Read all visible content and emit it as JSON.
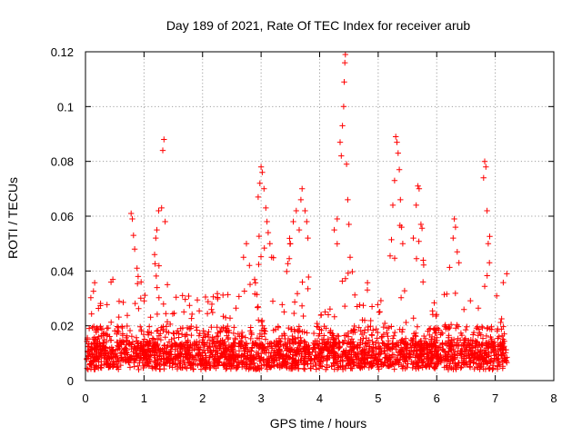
{
  "chart_data": {
    "type": "scatter",
    "title": "Day 189 of 2021, Rate Of TEC Index for receiver arub",
    "xlabel": "GPS time / hours",
    "ylabel": "ROTI / TECUs",
    "xlim": [
      0,
      8
    ],
    "ylim": [
      0,
      0.12
    ],
    "xticks": [
      0,
      1,
      2,
      3,
      4,
      5,
      6,
      7,
      8
    ],
    "xtick_labels": [
      "0",
      "1",
      "2",
      "3",
      "4",
      "5",
      "6",
      "7",
      "8"
    ],
    "yticks": [
      0,
      0.02,
      0.04,
      0.06,
      0.08,
      0.1,
      0.12
    ],
    "ytick_labels": [
      "0",
      "0.02",
      "0.04",
      "0.06",
      "0.08",
      "0.1",
      "0.12"
    ],
    "grid": true,
    "marker": "+",
    "color": "#ff0000",
    "series": [
      {
        "name": "ROTI",
        "note": "dense scatter from 0 to ~7.2 h; bulk values 0.003–0.03 TECU/min; selected high points listed explicitly",
        "peaks": [
          {
            "x": 0.78,
            "y": 0.061
          },
          {
            "x": 0.8,
            "y": 0.059
          },
          {
            "x": 0.82,
            "y": 0.053
          },
          {
            "x": 0.84,
            "y": 0.048
          },
          {
            "x": 0.88,
            "y": 0.041
          },
          {
            "x": 0.9,
            "y": 0.038
          },
          {
            "x": 0.95,
            "y": 0.036
          },
          {
            "x": 1.18,
            "y": 0.046
          },
          {
            "x": 1.2,
            "y": 0.052
          },
          {
            "x": 1.22,
            "y": 0.055
          },
          {
            "x": 1.25,
            "y": 0.062
          },
          {
            "x": 1.3,
            "y": 0.063
          },
          {
            "x": 1.32,
            "y": 0.084
          },
          {
            "x": 1.34,
            "y": 0.088
          },
          {
            "x": 1.36,
            "y": 0.058
          },
          {
            "x": 1.4,
            "y": 0.035
          },
          {
            "x": 2.7,
            "y": 0.045
          },
          {
            "x": 2.75,
            "y": 0.05
          },
          {
            "x": 2.8,
            "y": 0.042
          },
          {
            "x": 2.95,
            "y": 0.067
          },
          {
            "x": 2.98,
            "y": 0.072
          },
          {
            "x": 3.0,
            "y": 0.078
          },
          {
            "x": 3.02,
            "y": 0.076
          },
          {
            "x": 3.05,
            "y": 0.07
          },
          {
            "x": 3.08,
            "y": 0.063
          },
          {
            "x": 3.1,
            "y": 0.058
          },
          {
            "x": 3.12,
            "y": 0.054
          },
          {
            "x": 3.15,
            "y": 0.05
          },
          {
            "x": 3.18,
            "y": 0.045
          },
          {
            "x": 3.5,
            "y": 0.05
          },
          {
            "x": 3.55,
            "y": 0.058
          },
          {
            "x": 3.6,
            "y": 0.062
          },
          {
            "x": 3.65,
            "y": 0.055
          },
          {
            "x": 3.68,
            "y": 0.066
          },
          {
            "x": 3.7,
            "y": 0.07
          },
          {
            "x": 3.75,
            "y": 0.062
          },
          {
            "x": 3.78,
            "y": 0.058
          },
          {
            "x": 3.8,
            "y": 0.052
          },
          {
            "x": 4.25,
            "y": 0.055
          },
          {
            "x": 4.3,
            "y": 0.059
          },
          {
            "x": 4.35,
            "y": 0.087
          },
          {
            "x": 4.37,
            "y": 0.082
          },
          {
            "x": 4.39,
            "y": 0.093
          },
          {
            "x": 4.41,
            "y": 0.1
          },
          {
            "x": 4.42,
            "y": 0.109
          },
          {
            "x": 4.43,
            "y": 0.116
          },
          {
            "x": 4.44,
            "y": 0.119
          },
          {
            "x": 4.46,
            "y": 0.079
          },
          {
            "x": 4.48,
            "y": 0.066
          },
          {
            "x": 4.5,
            "y": 0.057
          },
          {
            "x": 4.52,
            "y": 0.045
          },
          {
            "x": 5.25,
            "y": 0.064
          },
          {
            "x": 5.28,
            "y": 0.073
          },
          {
            "x": 5.3,
            "y": 0.089
          },
          {
            "x": 5.32,
            "y": 0.087
          },
          {
            "x": 5.34,
            "y": 0.083
          },
          {
            "x": 5.36,
            "y": 0.077
          },
          {
            "x": 5.38,
            "y": 0.066
          },
          {
            "x": 5.4,
            "y": 0.056
          },
          {
            "x": 5.42,
            "y": 0.05
          },
          {
            "x": 5.6,
            "y": 0.052
          },
          {
            "x": 5.65,
            "y": 0.064
          },
          {
            "x": 5.68,
            "y": 0.071
          },
          {
            "x": 5.7,
            "y": 0.07
          },
          {
            "x": 5.73,
            "y": 0.057
          },
          {
            "x": 6.28,
            "y": 0.052
          },
          {
            "x": 6.3,
            "y": 0.059
          },
          {
            "x": 6.32,
            "y": 0.056
          },
          {
            "x": 6.35,
            "y": 0.047
          },
          {
            "x": 6.38,
            "y": 0.043
          },
          {
            "x": 6.8,
            "y": 0.074
          },
          {
            "x": 6.82,
            "y": 0.08
          },
          {
            "x": 6.84,
            "y": 0.078
          },
          {
            "x": 6.86,
            "y": 0.062
          },
          {
            "x": 6.88,
            "y": 0.05
          },
          {
            "x": 6.9,
            "y": 0.043
          }
        ]
      }
    ]
  }
}
